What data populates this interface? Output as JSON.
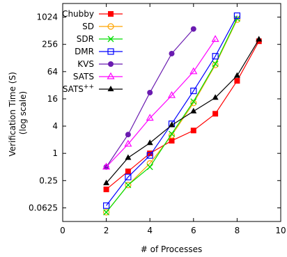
{
  "chart_data": {
    "type": "line",
    "title": "",
    "xlabel": "# of Processes",
    "ylabel_lines": [
      "Verification Time (S)",
      "(log scale)"
    ],
    "y_scale": "log2",
    "xlim": [
      0,
      10
    ],
    "ylim": [
      0.03125,
      2048
    ],
    "x_ticks": [
      0,
      2,
      4,
      6,
      8,
      10
    ],
    "x_tick_labels": [
      "0",
      "2",
      "4",
      "6",
      "8",
      "10"
    ],
    "y_ticks": [
      0.0625,
      0.25,
      1,
      4,
      16,
      64,
      256,
      1024
    ],
    "y_tick_labels": [
      "0.0625",
      "0.25",
      "1",
      "4",
      "16",
      "64",
      "256",
      "1024"
    ],
    "grid": false,
    "legend_position": "top-left",
    "series": [
      {
        "name": "Chubby",
        "label_base": "Chubby",
        "label_sup": "",
        "color": "#ff0000",
        "marker": "filled-square",
        "x": [
          2,
          3,
          4,
          5,
          6,
          7,
          8,
          9
        ],
        "y": [
          0.16,
          0.4,
          1.0,
          1.9,
          3.2,
          7.5,
          40,
          300
        ]
      },
      {
        "name": "SD",
        "label_base": "SD",
        "label_sup": "",
        "color": "#ffa500",
        "marker": "open-circle",
        "x": [
          2,
          3,
          4,
          5,
          6,
          7,
          8
        ],
        "y": [
          0.05,
          0.2,
          0.6,
          2.5,
          13,
          90,
          900
        ]
      },
      {
        "name": "SDR",
        "label_base": "SDR",
        "label_sup": "",
        "color": "#00dd00",
        "marker": "x",
        "x": [
          2,
          3,
          4,
          5,
          6,
          7,
          8
        ],
        "y": [
          0.05,
          0.2,
          0.5,
          2.7,
          14,
          95,
          950
        ]
      },
      {
        "name": "DMR",
        "label_base": "DMR",
        "label_sup": "",
        "color": "#0000ff",
        "marker": "open-square",
        "x": [
          2,
          3,
          4,
          5,
          6,
          7,
          8
        ],
        "y": [
          0.07,
          0.3,
          0.9,
          4.5,
          24,
          140,
          1100
        ]
      },
      {
        "name": "KVS",
        "label_base": "KVS",
        "label_sup": "",
        "color": "#6a1bb0",
        "marker": "filled-circle",
        "x": [
          2,
          3,
          4,
          5,
          6
        ],
        "y": [
          0.5,
          2.6,
          22,
          160,
          560
        ]
      },
      {
        "name": "SATS",
        "label_base": "SATS",
        "label_sup": "",
        "color": "#ff00ff",
        "marker": "open-triangle",
        "x": [
          2,
          3,
          4,
          5,
          6,
          7
        ],
        "y": [
          0.5,
          1.6,
          6,
          19,
          64,
          330
        ]
      },
      {
        "name": "SATS++",
        "label_base": "SATS",
        "label_sup": "++",
        "color": "#000000",
        "marker": "filled-triangle",
        "x": [
          2,
          3,
          4,
          5,
          6,
          7,
          8,
          9
        ],
        "y": [
          0.22,
          0.8,
          1.7,
          4.2,
          8.5,
          17,
          52,
          330
        ]
      }
    ]
  }
}
